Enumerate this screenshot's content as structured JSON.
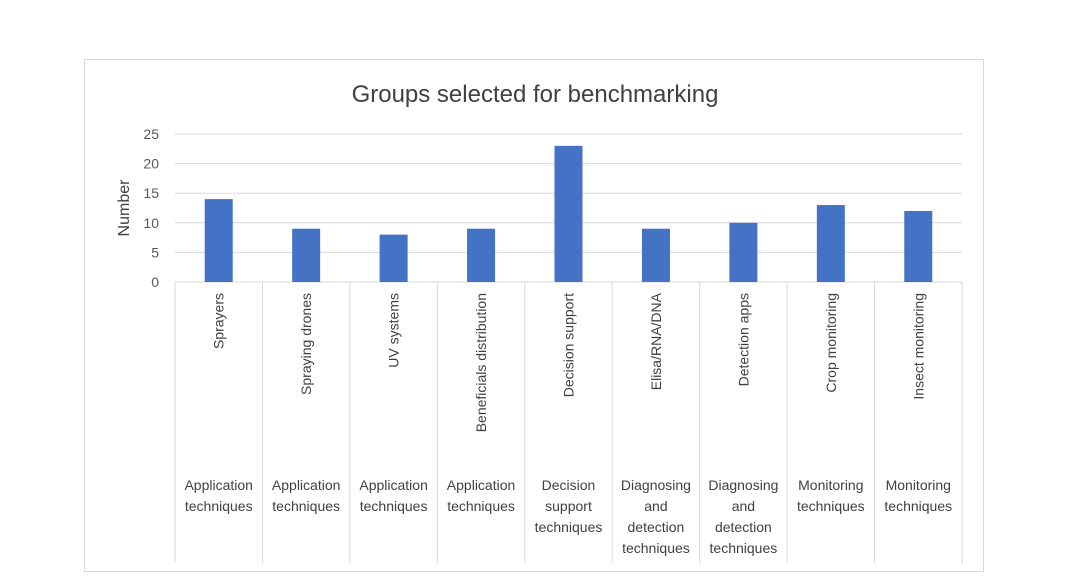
{
  "chart_data": {
    "type": "bar",
    "title": "Groups selected for benchmarking",
    "xlabel": "",
    "ylabel": "Number",
    "ylim": [
      0,
      25
    ],
    "yticks": [
      0,
      5,
      10,
      15,
      20,
      25
    ],
    "grid": true,
    "legend": "none",
    "bar_color": "#4472C4",
    "categories": [
      "Sprayers",
      "Spraying drones",
      "UV systems",
      "Beneficials distribution",
      "Decision support",
      "Elisa/RNA/DNA",
      "Detection apps",
      "Crop monitoring",
      "Insect monitoring"
    ],
    "values": [
      14,
      9,
      8,
      9,
      23,
      9,
      10,
      13,
      12
    ],
    "groups": [
      [
        "Application",
        "techniques"
      ],
      [
        "Application",
        "techniques"
      ],
      [
        "Application",
        "techniques"
      ],
      [
        "Application",
        "techniques"
      ],
      [
        "Decision",
        "support",
        "techniques"
      ],
      [
        "Diagnosing",
        "and",
        "detection",
        "techniques"
      ],
      [
        "Diagnosing",
        "and",
        "detection",
        "techniques"
      ],
      [
        "Monitoring",
        "techniques"
      ],
      [
        "Monitoring",
        "techniques"
      ]
    ]
  }
}
